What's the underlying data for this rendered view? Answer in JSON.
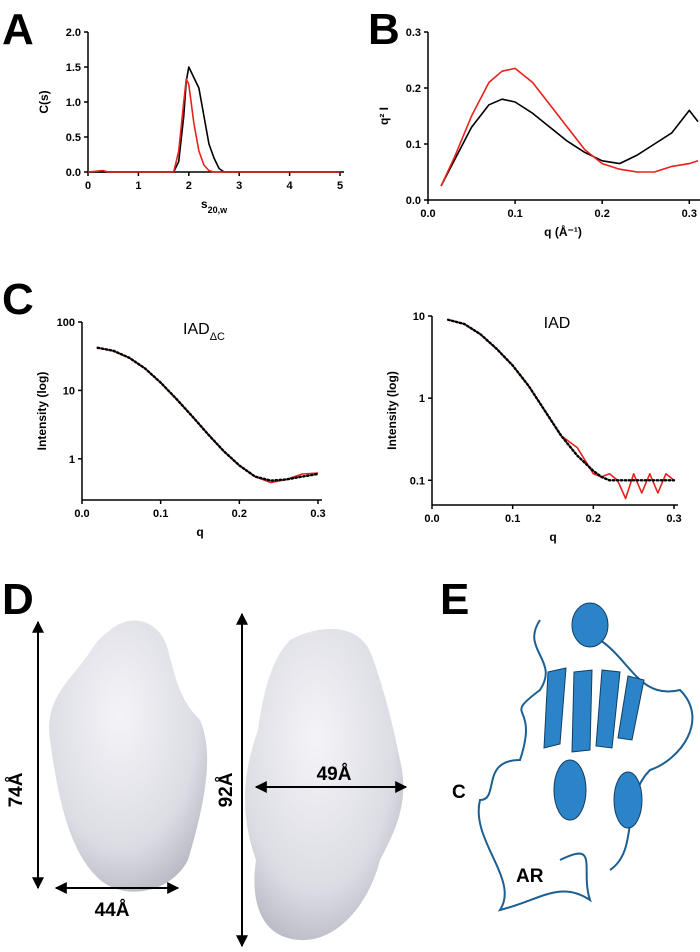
{
  "panel_letters": [
    "A",
    "B",
    "C",
    "D",
    "E"
  ],
  "chart_data": [
    {
      "type": "line",
      "xlabel": "s",
      "xlabel_sub": "20,w",
      "ylabel": "C(s)",
      "x": [
        0,
        0.3,
        0.4,
        1.5,
        1.7,
        1.8,
        1.9,
        1.95,
        2.0,
        2.1,
        2.2,
        2.3,
        2.4,
        2.5,
        2.6,
        2.7,
        3,
        5
      ],
      "series": [
        {
          "color": "#000000",
          "style": "solid",
          "values": [
            0,
            0,
            0,
            0,
            0,
            0.15,
            0.8,
            1.3,
            1.5,
            1.35,
            1.2,
            0.8,
            0.4,
            0.2,
            0.05,
            0,
            0,
            0
          ]
        },
        {
          "color": "#e8211d",
          "style": "solid",
          "values": [
            0,
            0.02,
            0,
            0,
            0,
            0.3,
            1.0,
            1.33,
            1.25,
            0.7,
            0.3,
            0.1,
            0.02,
            0,
            0,
            0,
            0,
            0
          ]
        }
      ],
      "xlim": [
        0,
        5
      ],
      "xticks": [
        0,
        1,
        2,
        3,
        4,
        5
      ],
      "ylim": [
        0,
        2
      ],
      "yticks": [
        {
          "value": 0,
          "label": "0.0"
        },
        0.5,
        {
          "value": 1,
          "label": "1.0"
        },
        1.5,
        {
          "value": 2,
          "label": "2.0"
        }
      ]
    },
    {
      "type": "line",
      "xlabel": "q (Å⁻¹)",
      "ylabel": "q² I",
      "x": [
        0.015,
        0.03,
        0.05,
        0.07,
        0.085,
        0.1,
        0.12,
        0.14,
        0.16,
        0.18,
        0.2,
        0.22,
        0.24,
        0.26,
        0.28,
        0.3,
        0.31
      ],
      "series": [
        {
          "color": "#000000",
          "style": "solid",
          "values": [
            0.025,
            0.07,
            0.13,
            0.17,
            0.18,
            0.175,
            0.155,
            0.13,
            0.105,
            0.085,
            0.07,
            0.065,
            0.08,
            0.1,
            0.12,
            0.16,
            0.14
          ]
        },
        {
          "color": "#e8211d",
          "style": "solid",
          "values": [
            0.025,
            0.075,
            0.15,
            0.21,
            0.23,
            0.235,
            0.21,
            0.17,
            0.13,
            0.09,
            0.065,
            0.055,
            0.05,
            0.05,
            0.06,
            0.065,
            0.07
          ]
        }
      ],
      "xlim": [
        0,
        0.31
      ],
      "xticks": [
        {
          "value": 0,
          "label": "0.0"
        },
        0.1,
        0.2,
        0.3
      ],
      "ylim": [
        0,
        0.3
      ],
      "yticks": [
        {
          "value": 0,
          "label": "0.0"
        },
        0.1,
        0.2,
        0.3
      ]
    },
    {
      "type": "line",
      "title": "IAD",
      "title_sub": "ΔC",
      "xlabel": "q",
      "ylabel": "Intensity (log)",
      "log_y": true,
      "x": [
        0.02,
        0.04,
        0.06,
        0.08,
        0.1,
        0.12,
        0.14,
        0.16,
        0.18,
        0.2,
        0.22,
        0.24,
        0.26,
        0.28,
        0.3
      ],
      "series": [
        {
          "color": "#e8211d",
          "style": "solid",
          "values": [
            42,
            37.5,
            30,
            21,
            13,
            7.5,
            4.2,
            2.3,
            1.3,
            0.8,
            0.55,
            0.45,
            0.5,
            0.6,
            0.62
          ]
        },
        {
          "color": "#000000",
          "style": "dotted",
          "values": [
            42,
            38,
            30,
            21,
            13,
            7.5,
            4.2,
            2.3,
            1.3,
            0.8,
            0.55,
            0.48,
            0.5,
            0.55,
            0.6
          ]
        }
      ],
      "xlim": [
        0,
        0.3
      ],
      "xticks": [
        {
          "value": 0,
          "label": "0.0"
        },
        0.1,
        0.2,
        0.3
      ],
      "ylim": [
        0.25,
        100
      ],
      "yticks": [
        1,
        10,
        100
      ]
    },
    {
      "type": "line",
      "title": "IAD",
      "xlabel": "q",
      "ylabel": "Intensity (log)",
      "log_y": true,
      "x": [
        0.02,
        0.04,
        0.06,
        0.08,
        0.1,
        0.12,
        0.14,
        0.16,
        0.18,
        0.2,
        0.21,
        0.22,
        0.23,
        0.24,
        0.25,
        0.26,
        0.27,
        0.28,
        0.29,
        0.3
      ],
      "series": [
        {
          "color": "#e8211d",
          "style": "solid",
          "values": [
            9,
            8,
            6,
            4,
            2.5,
            1.4,
            0.7,
            0.35,
            0.25,
            0.12,
            0.11,
            0.12,
            0.1,
            0.06,
            0.12,
            0.07,
            0.12,
            0.07,
            0.12,
            0.1
          ]
        },
        {
          "color": "#000000",
          "style": "dotted",
          "values": [
            9,
            8,
            6,
            4,
            2.5,
            1.4,
            0.7,
            0.35,
            0.2,
            0.13,
            0.11,
            0.1,
            0.1,
            0.1,
            0.1,
            0.1,
            0.1,
            0.1,
            0.1,
            0.1
          ]
        }
      ],
      "xlim": [
        0,
        0.3
      ],
      "xticks": [
        {
          "value": 0,
          "label": "0.0"
        },
        0.1,
        0.2,
        0.3
      ],
      "ylim": [
        0.05,
        10
      ],
      "yticks": [
        0.1,
        1,
        10
      ]
    }
  ],
  "figure_d": {
    "height_left": "74Å",
    "width_left": "44Å",
    "height_right": "92Å",
    "width_right": "49Å"
  },
  "figure_e": {
    "c_label": "C",
    "ar_label": "AR"
  }
}
